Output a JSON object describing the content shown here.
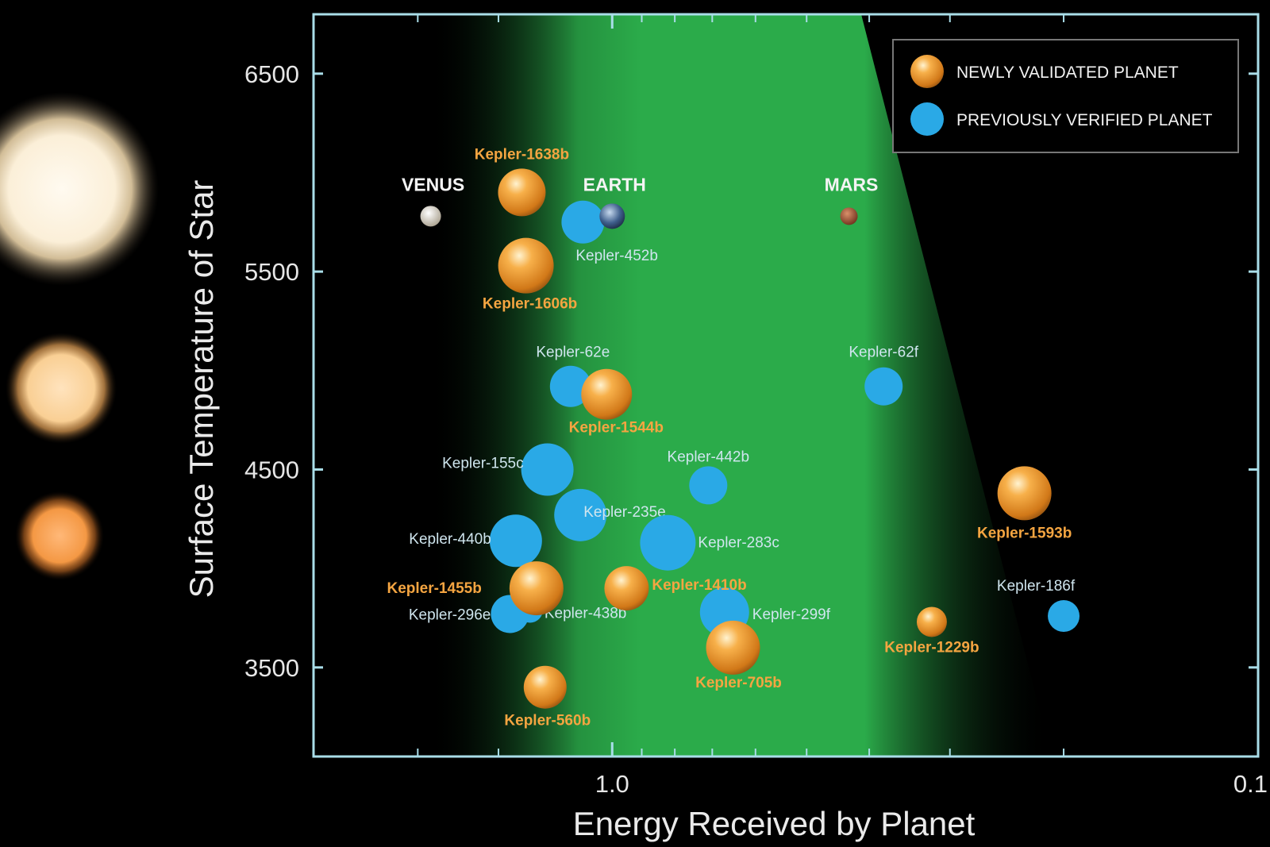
{
  "chart_data": {
    "type": "scatter",
    "xlabel": "Energy Received by Planet",
    "ylabel": "Surface Temperature of Star",
    "x_scale": "log",
    "x_direction": "decreasing",
    "xlim": [
      2.9,
      0.1
    ],
    "ylim": [
      3050,
      6800
    ],
    "x_ticks": [
      {
        "value": 1.0,
        "label": "1.0"
      },
      {
        "value": 0.1,
        "label": "0.1"
      }
    ],
    "y_ticks": [
      {
        "value": 6500,
        "label": "6500"
      },
      {
        "value": 5500,
        "label": "5500"
      },
      {
        "value": 4500,
        "label": "4500"
      },
      {
        "value": 3500,
        "label": "3500"
      }
    ],
    "habitable_zone": "green band",
    "legend": {
      "position": "top-right",
      "entries": [
        {
          "label": "NEWLY VALIDATED PLANET",
          "kind": "new",
          "color": "#f0a03a"
        },
        {
          "label": "PREVIOUSLY VERIFIED PLANET",
          "kind": "verified",
          "color": "#2aa9e6"
        }
      ]
    },
    "colors": {
      "new": "#f0a03a",
      "verified": "#2aa9e6",
      "habitable_zone": "#2bab4a"
    },
    "series": [
      {
        "name": "NEWLY VALIDATED PLANET",
        "points": [
          {
            "label": "Kepler-1638b",
            "x": 1.38,
            "y": 5900
          },
          {
            "label": "Kepler-1606b",
            "x": 1.36,
            "y": 5530
          },
          {
            "label": "Kepler-1544b",
            "x": 1.02,
            "y": 4880
          },
          {
            "label": "Kepler-1455b",
            "x": 1.31,
            "y": 3900
          },
          {
            "label": "Kepler-1410b",
            "x": 0.95,
            "y": 3900
          },
          {
            "label": "Kepler-705b",
            "x": 0.65,
            "y": 3600
          },
          {
            "label": "Kepler-1229b",
            "x": 0.32,
            "y": 3730
          },
          {
            "label": "Kepler-1593b",
            "x": 0.23,
            "y": 4380
          },
          {
            "label": "Kepler-560b",
            "x": 1.27,
            "y": 3400
          }
        ]
      },
      {
        "name": "PREVIOUSLY VERIFIED PLANET",
        "points": [
          {
            "label": "Kepler-452b",
            "x": 1.11,
            "y": 5750
          },
          {
            "label": "Kepler-62e",
            "x": 1.16,
            "y": 4920
          },
          {
            "label": "Kepler-62f",
            "x": 0.38,
            "y": 4920
          },
          {
            "label": "Kepler-155c",
            "x": 1.26,
            "y": 4500
          },
          {
            "label": "Kepler-442b",
            "x": 0.71,
            "y": 4420
          },
          {
            "label": "Kepler-235e",
            "x": 1.12,
            "y": 4270
          },
          {
            "label": "Kepler-283c",
            "x": 0.82,
            "y": 4130
          },
          {
            "label": "Kepler-440b",
            "x": 1.41,
            "y": 4140
          },
          {
            "label": "Kepler-296e",
            "x": 1.44,
            "y": 3770
          },
          {
            "label": "Kepler-438b",
            "x": 1.34,
            "y": 3790
          },
          {
            "label": "Kepler-299f",
            "x": 0.67,
            "y": 3780
          },
          {
            "label": "Kepler-186f",
            "x": 0.2,
            "y": 3760
          }
        ]
      },
      {
        "name": "Solar System",
        "points": [
          {
            "label": "VENUS",
            "x": 1.91,
            "y": 5780
          },
          {
            "label": "EARTH",
            "x": 1.0,
            "y": 5780
          },
          {
            "label": "MARS",
            "x": 0.43,
            "y": 5780
          }
        ]
      }
    ]
  }
}
